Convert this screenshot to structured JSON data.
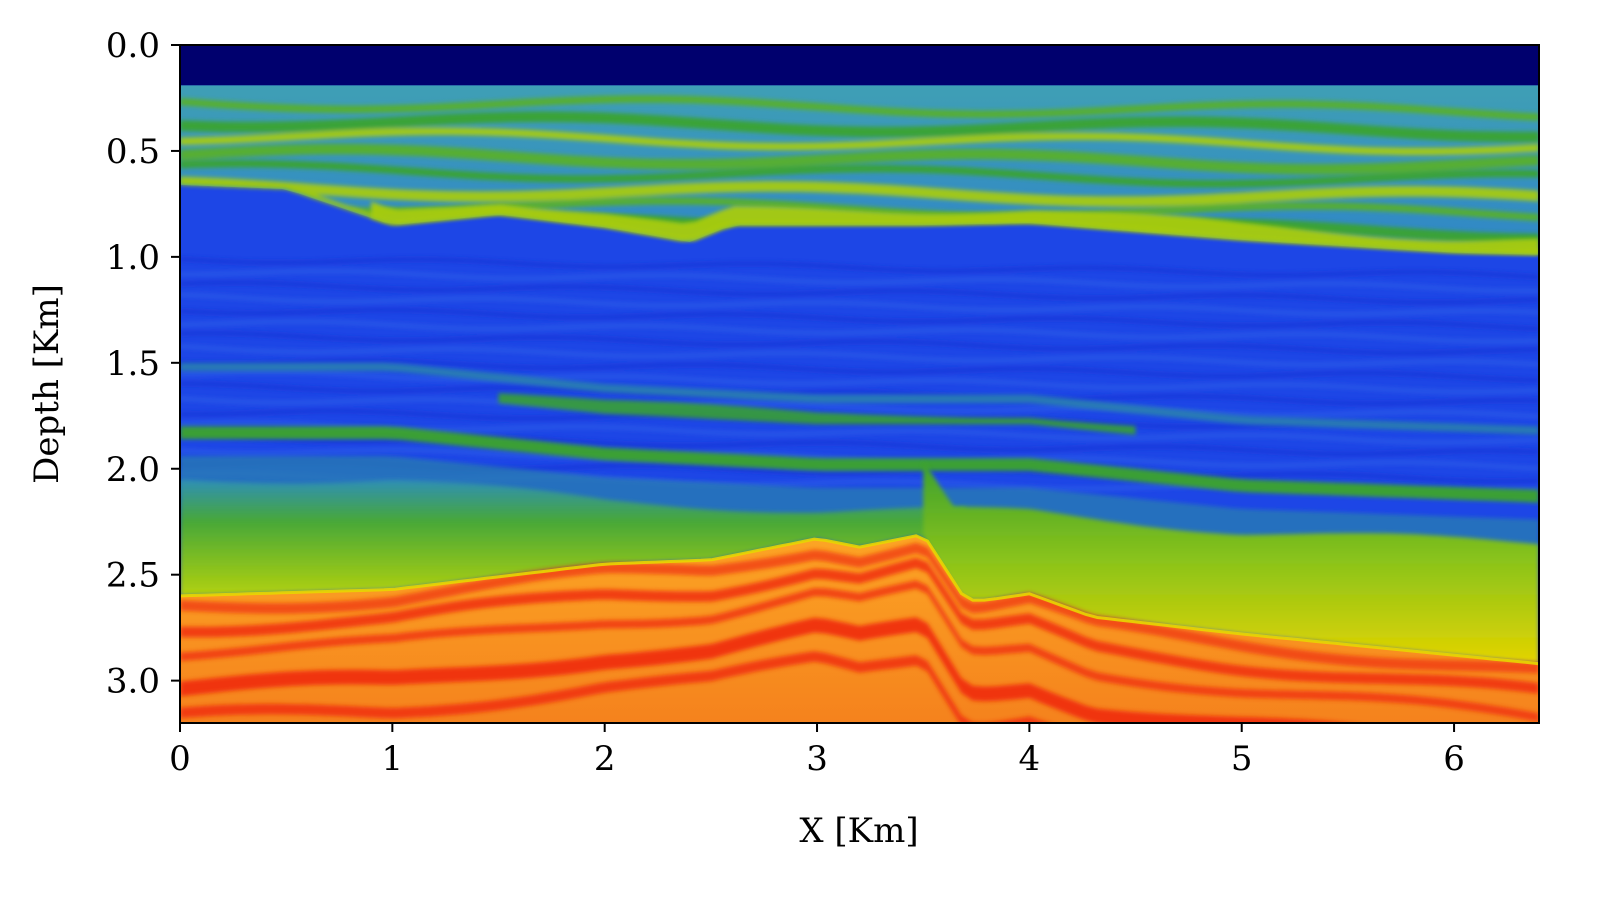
{
  "chart_data": {
    "type": "heatmap",
    "title": "",
    "xlabel": "X [Km]",
    "ylabel": "Depth [Km]",
    "xlim": [
      0,
      6.4
    ],
    "ylim": [
      3.2,
      0.0
    ],
    "y_axis_inverted": true,
    "x_ticks": [
      0,
      1,
      2,
      3,
      4,
      5,
      6
    ],
    "x_tick_labels": [
      "0",
      "1",
      "2",
      "3",
      "4",
      "5",
      "6"
    ],
    "y_ticks": [
      0.0,
      0.5,
      1.0,
      1.5,
      2.0,
      2.5,
      3.0
    ],
    "y_tick_labels": [
      "0.0",
      "0.5",
      "1.0",
      "1.5",
      "2.0",
      "2.5",
      "3.0"
    ],
    "grid": false,
    "colorbar": false,
    "colormap": "gist_ncar-like (navy → blue → green → yellow → orange → red)",
    "colors": {
      "water": "#00006e",
      "blue": "#1d46e6",
      "teal": "#2a7fb0",
      "green": "#3ba42a",
      "yellow_green": "#a8cc0a",
      "yellow": "#e8d600",
      "orange": "#fb9a1e",
      "red": "#f03010"
    },
    "interfaces": [
      {
        "name": "water_bottom",
        "x": [
          0,
          6.4
        ],
        "depth": [
          0.19,
          0.19
        ]
      },
      {
        "name": "shallow_unconformity",
        "x": [
          0,
          0.5,
          1.0,
          1.5,
          2.0,
          2.4,
          2.6,
          3.5,
          4.0,
          5.0,
          6.0,
          6.4
        ],
        "depth": [
          0.66,
          0.68,
          0.85,
          0.8,
          0.86,
          0.93,
          0.85,
          0.85,
          0.84,
          0.92,
          0.98,
          0.99
        ]
      },
      {
        "name": "green_band_1",
        "x": [
          0,
          1,
          2,
          3,
          4,
          5,
          6.4
        ],
        "depth": [
          1.8,
          1.8,
          1.9,
          1.95,
          1.95,
          2.05,
          2.1
        ]
      },
      {
        "name": "top_high_velocity",
        "x": [
          0,
          1,
          2,
          2.5,
          3.0,
          3.2,
          3.5,
          3.7,
          3.8,
          4.0,
          4.3,
          5.0,
          6.0,
          6.4
        ],
        "depth": [
          2.6,
          2.57,
          2.45,
          2.43,
          2.33,
          2.37,
          2.31,
          2.62,
          2.62,
          2.59,
          2.7,
          2.78,
          2.88,
          2.92
        ]
      }
    ]
  }
}
